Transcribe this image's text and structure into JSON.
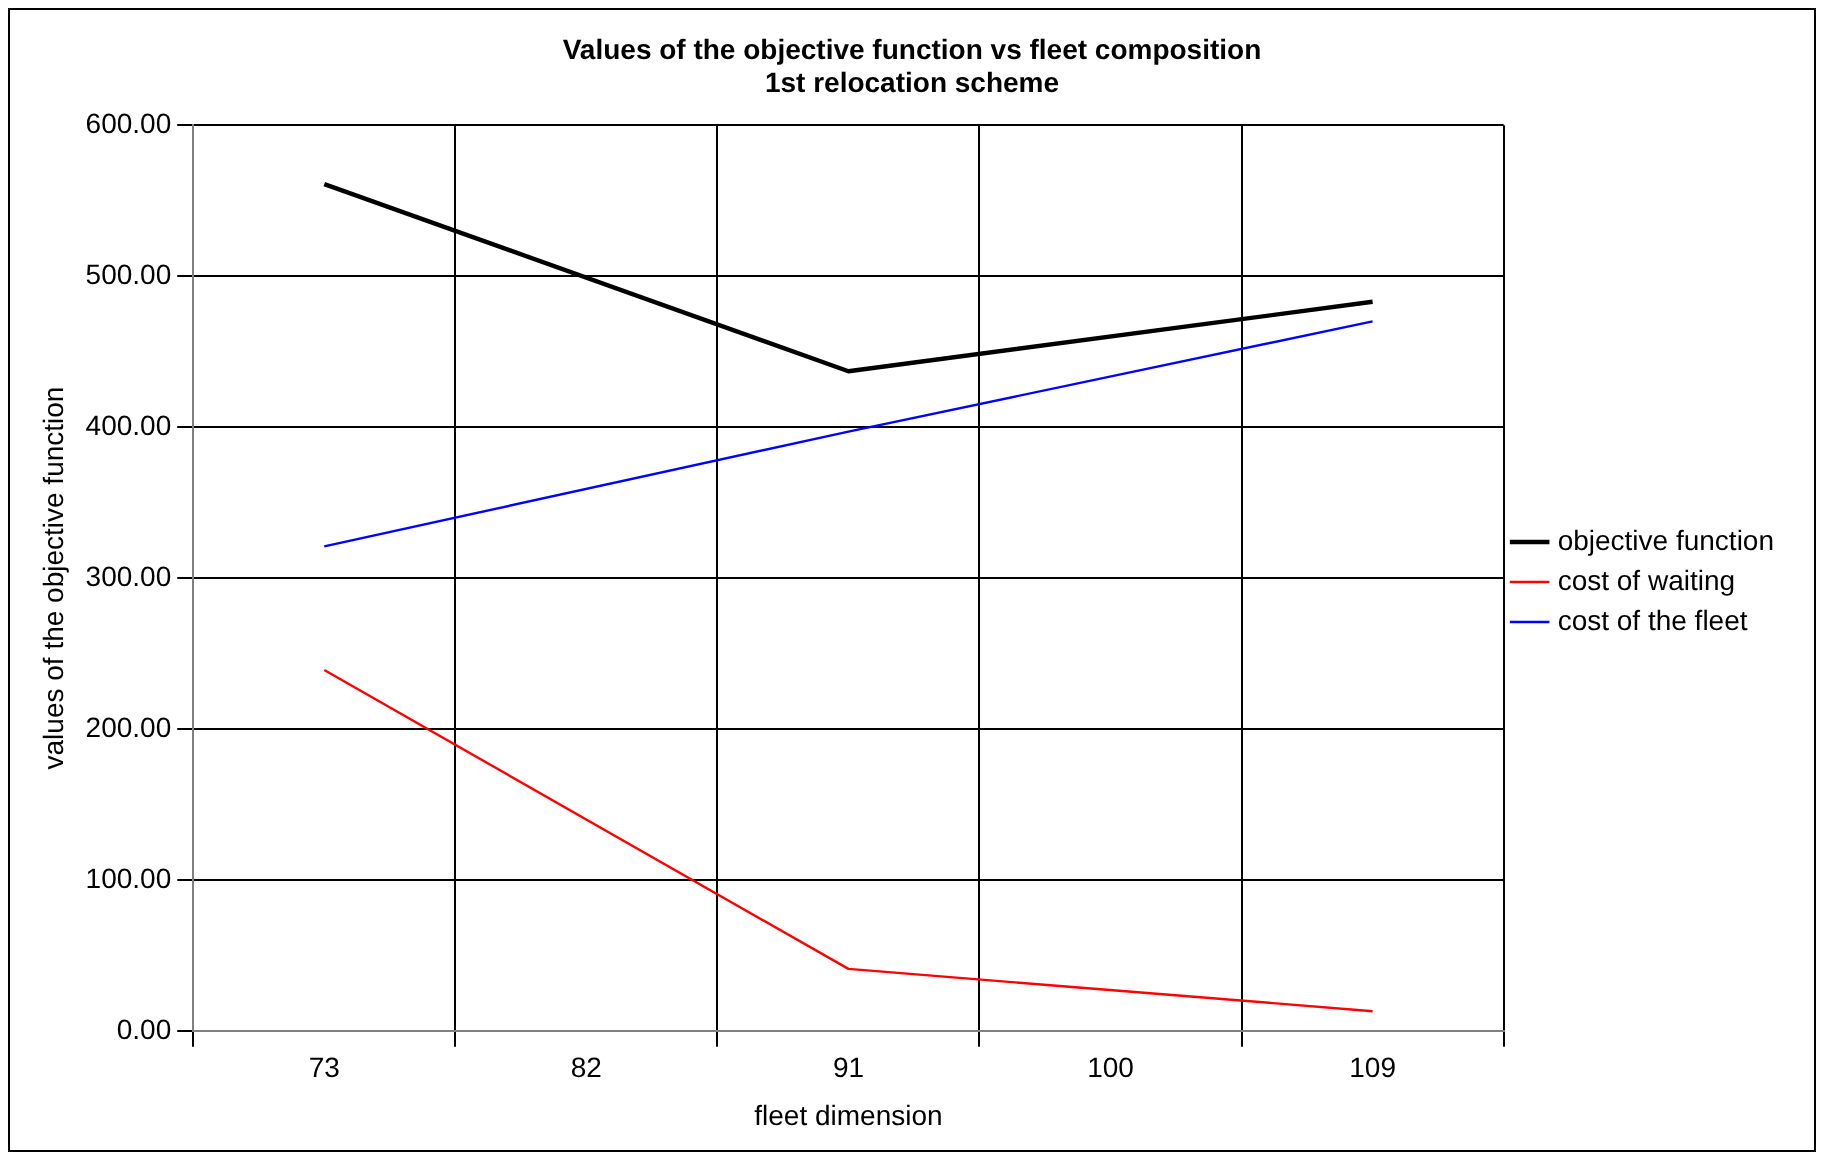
{
  "chart_data": {
    "type": "line",
    "title": "Values of the objective function vs fleet composition",
    "subtitle": "1st relocation scheme",
    "xlabel": "fleet dimension",
    "ylabel": "values of the objective function",
    "categories": [
      "73",
      "82",
      "91",
      "100",
      "109"
    ],
    "series": [
      {
        "name": "objective function",
        "color": "#000000",
        "values": [
          561,
          null,
          437,
          null,
          483
        ]
      },
      {
        "name": "cost of waiting",
        "color": "#ff0000",
        "values": [
          239,
          null,
          41,
          null,
          13
        ]
      },
      {
        "name": "cost of the fleet",
        "color": "#0000ff",
        "values": [
          321,
          null,
          397,
          null,
          470
        ]
      }
    ],
    "ylim": [
      0,
      600
    ],
    "yticks": [
      {
        "value": 0,
        "label": "0.00"
      },
      {
        "value": 100,
        "label": "100.00"
      },
      {
        "value": 200,
        "label": "200.00"
      },
      {
        "value": 300,
        "label": "300.00"
      },
      {
        "value": 400,
        "label": "400.00"
      },
      {
        "value": 500,
        "label": "500.00"
      },
      {
        "value": 600,
        "label": "600.00"
      }
    ],
    "grid": true,
    "legend": "right",
    "marker": "none",
    "line_style": "solid"
  }
}
